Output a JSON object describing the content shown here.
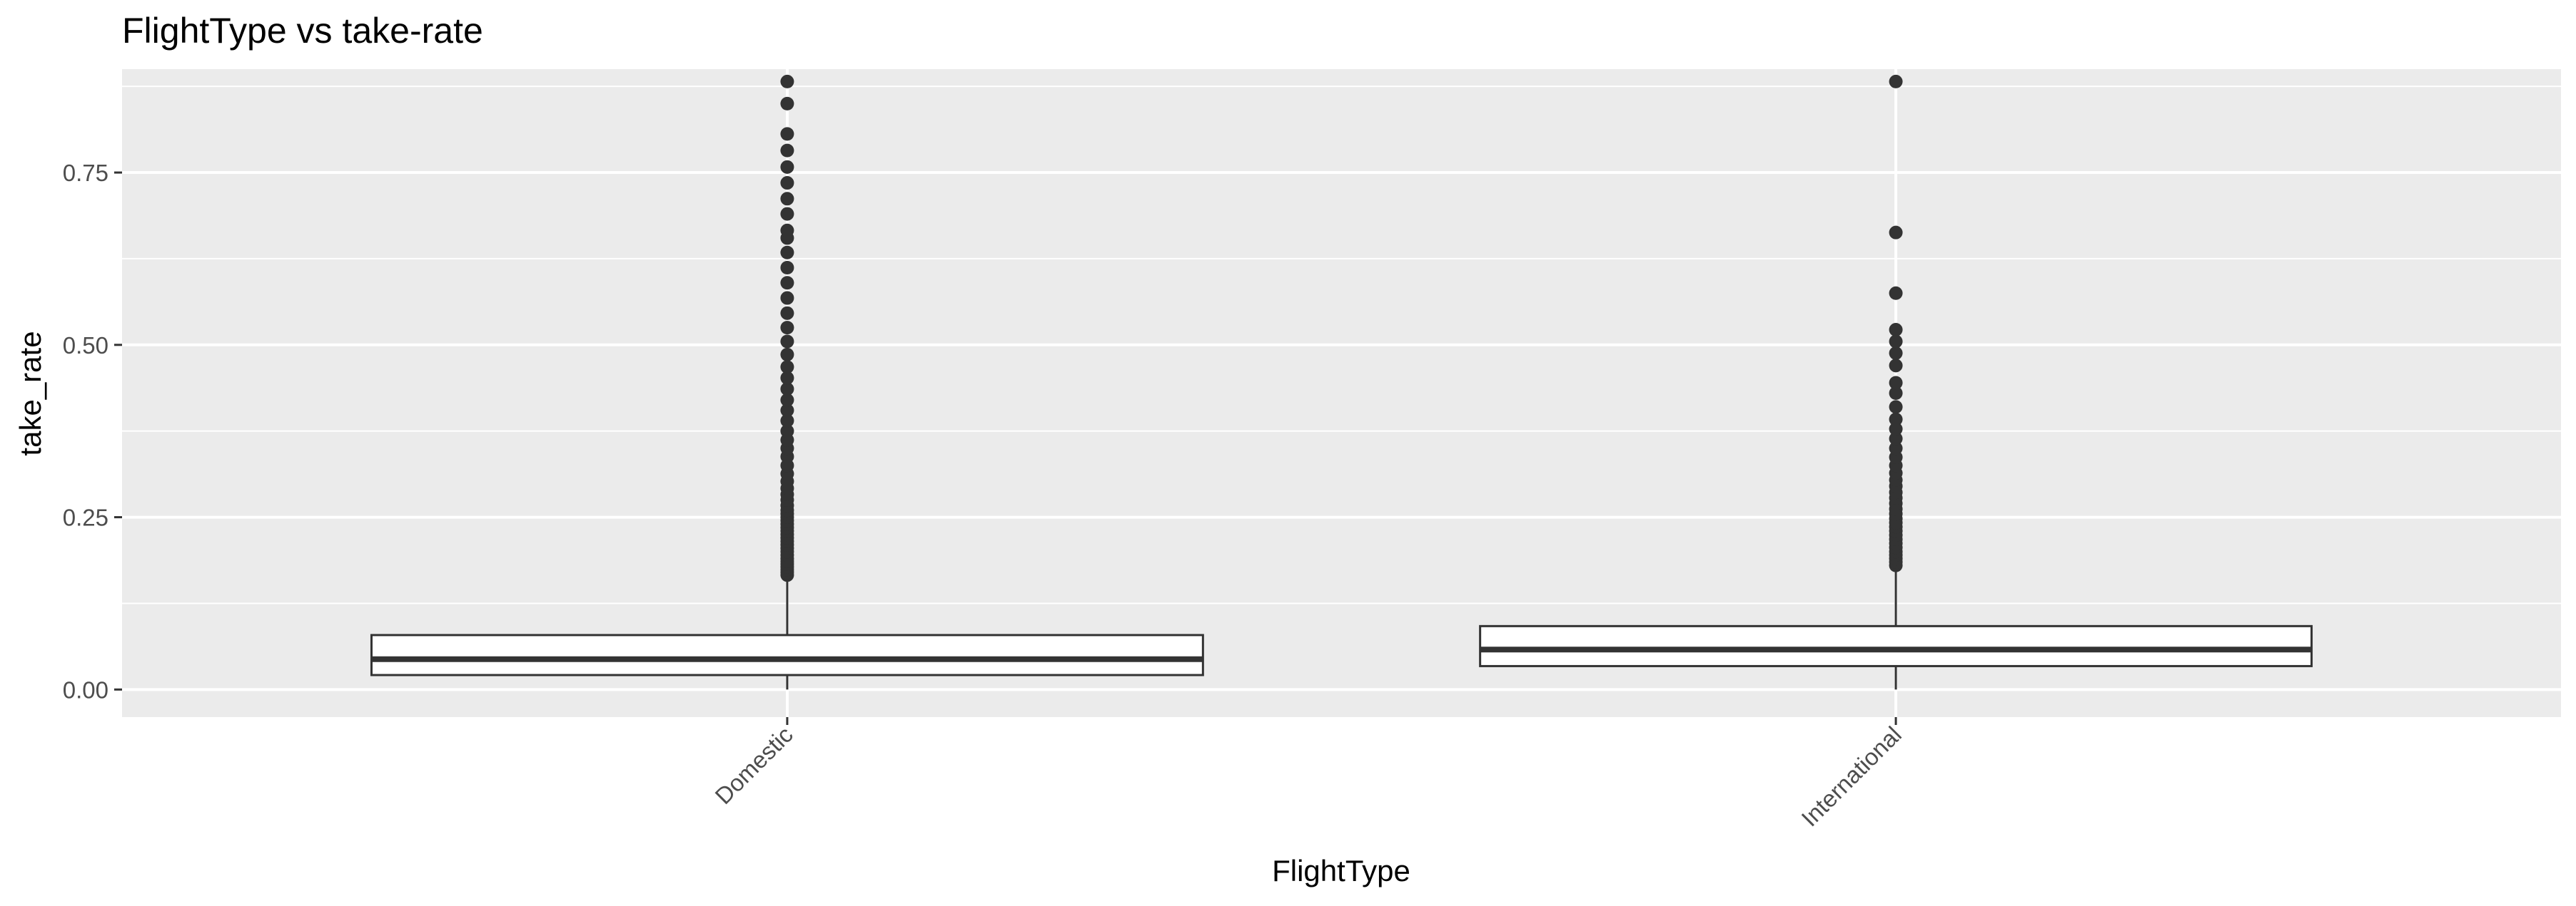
{
  "chart_data": {
    "type": "boxplot",
    "title": "FlightType vs take-rate",
    "xlabel": "FlightType",
    "ylabel": "take_rate",
    "categories": [
      "Domestic",
      "International"
    ],
    "ylim": [
      -0.04,
      0.9
    ],
    "yticks": [
      0.0,
      0.25,
      0.5,
      0.75
    ],
    "ytick_labels": [
      "0.00",
      "0.25",
      "0.50",
      "0.75"
    ],
    "grid": true,
    "legend": "none",
    "boxes": [
      {
        "category": "Domestic",
        "whisker_low": 0.0,
        "q1": 0.021,
        "median": 0.044,
        "q3": 0.079,
        "whisker_high": 0.163,
        "outliers": [
          0.166,
          0.17,
          0.174,
          0.178,
          0.182,
          0.186,
          0.19,
          0.195,
          0.2,
          0.205,
          0.21,
          0.215,
          0.22,
          0.225,
          0.23,
          0.235,
          0.24,
          0.245,
          0.25,
          0.255,
          0.26,
          0.267,
          0.275,
          0.283,
          0.292,
          0.302,
          0.313,
          0.325,
          0.338,
          0.35,
          0.362,
          0.375,
          0.39,
          0.405,
          0.42,
          0.436,
          0.452,
          0.468,
          0.486,
          0.505,
          0.525,
          0.546,
          0.568,
          0.59,
          0.612,
          0.634,
          0.655,
          0.666,
          0.69,
          0.712,
          0.735,
          0.758,
          0.782,
          0.806,
          0.85,
          0.882
        ]
      },
      {
        "category": "International",
        "whisker_low": 0.0,
        "q1": 0.034,
        "median": 0.058,
        "q3": 0.092,
        "whisker_high": 0.176,
        "outliers": [
          0.18,
          0.185,
          0.19,
          0.195,
          0.2,
          0.206,
          0.212,
          0.218,
          0.224,
          0.23,
          0.236,
          0.242,
          0.248,
          0.255,
          0.262,
          0.27,
          0.278,
          0.286,
          0.295,
          0.304,
          0.314,
          0.325,
          0.337,
          0.35,
          0.364,
          0.378,
          0.392,
          0.41,
          0.43,
          0.445,
          0.47,
          0.488,
          0.505,
          0.522,
          0.575,
          0.663,
          0.882
        ]
      }
    ]
  }
}
